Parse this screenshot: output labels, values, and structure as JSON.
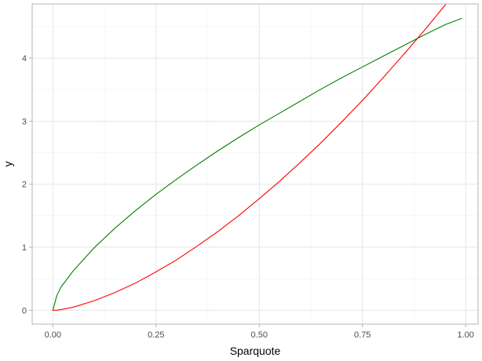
{
  "chart_data": {
    "type": "line",
    "xlabel": "Sparquote",
    "ylabel": "y",
    "xlim": [
      -0.05,
      1.03
    ],
    "ylim": [
      -0.22,
      4.86
    ],
    "x_ticks": [
      0.0,
      0.25,
      0.5,
      0.75,
      1.0
    ],
    "x_tick_labels": [
      "0.00",
      "0.25",
      "0.50",
      "0.75",
      "1.00"
    ],
    "y_ticks": [
      0,
      1,
      2,
      3,
      4
    ],
    "y_tick_labels": [
      "0",
      "1",
      "2",
      "3",
      "4"
    ],
    "grid": true,
    "legend": "none",
    "colors": {
      "panel_border": "#b3b3b3",
      "grid_major": "#e6e6e6",
      "grid_minor": "#f2f2f2",
      "tick": "#b3b3b3"
    },
    "series": [
      {
        "color": "#008000",
        "x": [
          0.0,
          0.01,
          0.02,
          0.05,
          0.1,
          0.15,
          0.2,
          0.25,
          0.3,
          0.35,
          0.4,
          0.45,
          0.5,
          0.55,
          0.6,
          0.65,
          0.7,
          0.75,
          0.8,
          0.85,
          0.9,
          0.95,
          0.99
        ],
        "y": [
          0.0,
          0.24,
          0.37,
          0.63,
          0.99,
          1.3,
          1.58,
          1.84,
          2.08,
          2.31,
          2.53,
          2.74,
          2.94,
          3.13,
          3.32,
          3.51,
          3.69,
          3.86,
          4.03,
          4.2,
          4.37,
          4.53,
          4.63
        ]
      },
      {
        "color": "#ff0000",
        "x": [
          0.0,
          0.01,
          0.02,
          0.05,
          0.1,
          0.15,
          0.2,
          0.25,
          0.3,
          0.35,
          0.4,
          0.45,
          0.5,
          0.55,
          0.6,
          0.65,
          0.7,
          0.75,
          0.8,
          0.85,
          0.9,
          0.95,
          0.99
        ],
        "y": [
          0.0,
          0.0,
          0.01,
          0.05,
          0.15,
          0.28,
          0.43,
          0.61,
          0.8,
          1.02,
          1.25,
          1.5,
          1.77,
          2.05,
          2.35,
          2.66,
          2.99,
          3.33,
          3.69,
          4.06,
          4.44,
          4.84,
          5.17
        ]
      }
    ]
  }
}
